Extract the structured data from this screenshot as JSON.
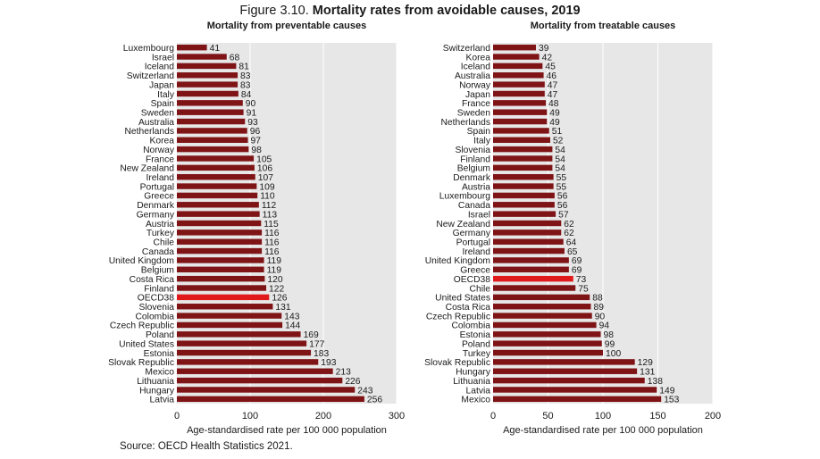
{
  "figure": {
    "label": "Figure 3.10.",
    "title": "Mortality rates from avoidable causes, 2019",
    "source": "Source: OECD Health Statistics 2021."
  },
  "colors": {
    "bar": "#7f1416",
    "highlight": "#e0191b",
    "plot_bg": "#e7e7e7",
    "grid": "#ffffff"
  },
  "chart_data": [
    {
      "type": "bar",
      "orientation": "horizontal",
      "title": "Mortality from preventable causes",
      "xlabel": "Age-standardised rate per 100 000 population",
      "xlim": [
        0,
        300
      ],
      "xticks": [
        0,
        100,
        200,
        300
      ],
      "highlight": "OECD38",
      "categories": [
        "Luxembourg",
        "Israel",
        "Iceland",
        "Switzerland",
        "Japan",
        "Italy",
        "Spain",
        "Sweden",
        "Australia",
        "Netherlands",
        "Korea",
        "Norway",
        "France",
        "New Zealand",
        "Ireland",
        "Portugal",
        "Greece",
        "Denmark",
        "Germany",
        "Austria",
        "Turkey",
        "Chile",
        "Canada",
        "United Kingdom",
        "Belgium",
        "Costa Rica",
        "Finland",
        "OECD38",
        "Slovenia",
        "Colombia",
        "Czech Republic",
        "Poland",
        "United States",
        "Estonia",
        "Slovak Republic",
        "Mexico",
        "Lithuania",
        "Hungary",
        "Latvia"
      ],
      "values": [
        41,
        68,
        81,
        83,
        83,
        84,
        90,
        91,
        93,
        96,
        97,
        98,
        105,
        106,
        107,
        109,
        110,
        112,
        113,
        115,
        116,
        116,
        116,
        119,
        119,
        120,
        122,
        126,
        131,
        143,
        144,
        169,
        177,
        183,
        193,
        213,
        226,
        243,
        256
      ]
    },
    {
      "type": "bar",
      "orientation": "horizontal",
      "title": "Mortality from treatable causes",
      "xlabel": "Age-standardised rate per 100 000 population",
      "xlim": [
        0,
        200
      ],
      "xticks": [
        0,
        50,
        100,
        150,
        200
      ],
      "highlight": "OECD38",
      "categories": [
        "Switzerland",
        "Korea",
        "Iceland",
        "Australia",
        "Norway",
        "Japan",
        "France",
        "Sweden",
        "Netherlands",
        "Spain",
        "Italy",
        "Slovenia",
        "Finland",
        "Belgium",
        "Denmark",
        "Austria",
        "Luxembourg",
        "Canada",
        "Israel",
        "New Zealand",
        "Germany",
        "Portugal",
        "Ireland",
        "United Kingdom",
        "Greece",
        "OECD38",
        "Chile",
        "United States",
        "Costa Rica",
        "Czech Republic",
        "Colombia",
        "Estonia",
        "Poland",
        "Turkey",
        "Slovak Republic",
        "Hungary",
        "Lithuania",
        "Latvia",
        "Mexico"
      ],
      "values": [
        39,
        42,
        45,
        46,
        47,
        47,
        48,
        49,
        49,
        51,
        52,
        54,
        54,
        54,
        55,
        55,
        56,
        56,
        57,
        62,
        62,
        64,
        65,
        69,
        69,
        73,
        75,
        88,
        89,
        90,
        94,
        98,
        99,
        100,
        129,
        131,
        138,
        149,
        153
      ]
    }
  ]
}
